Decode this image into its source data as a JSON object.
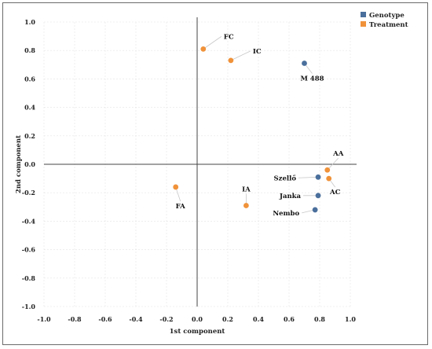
{
  "chart_data": {
    "type": "scatter",
    "xlabel": "1st component",
    "ylabel": "2nd component",
    "xlim": [
      -1.0,
      1.0
    ],
    "ylim": [
      -1.0,
      1.0
    ],
    "x_ticks": [
      "-1.0",
      "-0.8",
      "-0.6",
      "-0.4",
      "-0.2",
      "0.0",
      "0.2",
      "0.4",
      "0.6",
      "0.8",
      "1.0"
    ],
    "y_ticks": [
      "1.0",
      "0.8",
      "0.6",
      "0.4",
      "0.2",
      "0.0",
      "-0.2",
      "-0.4",
      "-0.6",
      "-0.8",
      "-1.0"
    ],
    "grid": true,
    "legend_position": "top-right",
    "series": [
      {
        "name": "Genotype",
        "color": "#4a6f9c",
        "points": [
          {
            "label": "M 488",
            "x": 0.7,
            "y": 0.71
          },
          {
            "label": "Szellő",
            "x": 0.79,
            "y": -0.09
          },
          {
            "label": "Janka",
            "x": 0.79,
            "y": -0.22
          },
          {
            "label": "Nembo",
            "x": 0.77,
            "y": -0.32
          }
        ]
      },
      {
        "name": "Treatment",
        "color": "#f0923a",
        "points": [
          {
            "label": "FC",
            "x": 0.04,
            "y": 0.81
          },
          {
            "label": "IC",
            "x": 0.22,
            "y": 0.73
          },
          {
            "label": "AA",
            "x": 0.85,
            "y": -0.04
          },
          {
            "label": "AC",
            "x": 0.86,
            "y": -0.1
          },
          {
            "label": "FA",
            "x": -0.14,
            "y": -0.16
          },
          {
            "label": "IA",
            "x": 0.32,
            "y": -0.29
          }
        ]
      }
    ]
  }
}
